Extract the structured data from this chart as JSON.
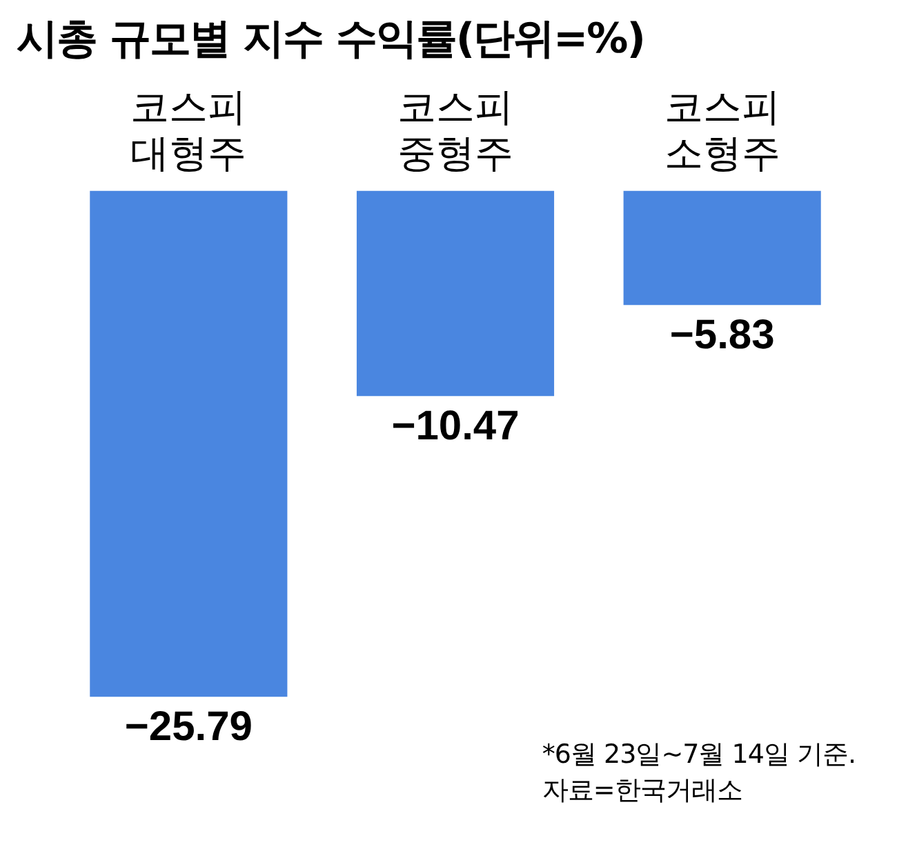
{
  "chart_data": {
    "type": "bar",
    "title": "시총 규모별 지수 수익률(단위=%)",
    "categories": [
      "코스피 대형주",
      "코스피 중형주",
      "코스피 소형주"
    ],
    "values": [
      -25.79,
      -10.47,
      -5.83
    ],
    "color": "#4a86e0",
    "data_labels": true,
    "grid": false,
    "legend": false,
    "annotations": [
      "*6월 23일~7월 14일 기준.",
      "자료=한국거래소"
    ]
  }
}
